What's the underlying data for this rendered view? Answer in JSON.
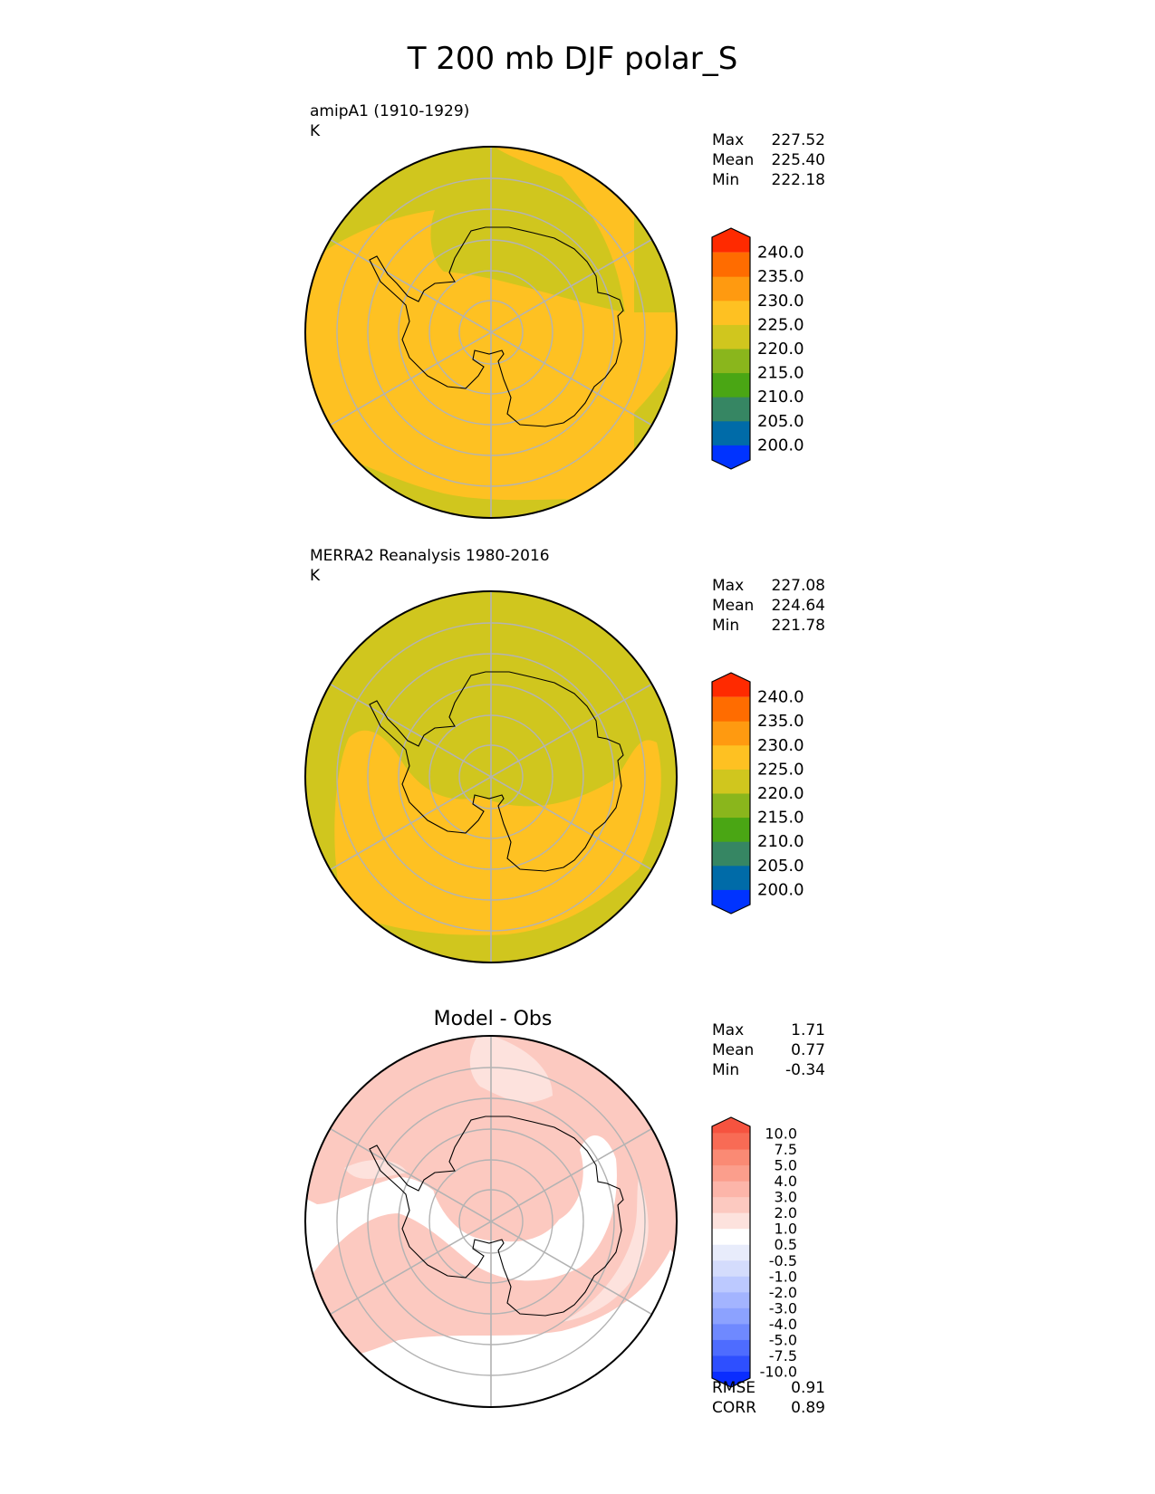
{
  "title": "T 200 mb DJF polar_S",
  "colors": {
    "temp_levels": [
      "#0033ff",
      "#006ba8",
      "#368663",
      "#4aa614",
      "#8ab61c",
      "#d0c61e",
      "#fec122",
      "#ff9a10",
      "#ff6c00",
      "#ff2a00"
    ],
    "diff_levels": [
      "#0a2dff",
      "#2e4fff",
      "#4e6cff",
      "#6f89ff",
      "#8ca2ff",
      "#a3b4ff",
      "#bcc9ff",
      "#d4dcfc",
      "#e8ecfb",
      "#ffffff",
      "#fde2dd",
      "#fcc9c0",
      "#fcb5a9",
      "#fb9e8c",
      "#fa8a74",
      "#f86b55",
      "#f6533f",
      "#f22d16"
    ],
    "grid": "#b3b3b3",
    "coast": "#000000"
  },
  "chart_data": [
    {
      "type": "heatmap",
      "projection": "south-polar-stereographic",
      "title_left": "amipA1 (1910-1929)",
      "units": "K",
      "stats": [
        {
          "label": "Max",
          "value": "227.52"
        },
        {
          "label": "Mean",
          "value": "225.40"
        },
        {
          "label": "Min",
          "value": "222.18"
        }
      ],
      "colorbar": {
        "boundaries": [
          195,
          200,
          205,
          210,
          215,
          220,
          225,
          230,
          235,
          240,
          245
        ],
        "tick_labels": [
          "200.0",
          "205.0",
          "210.0",
          "215.0",
          "220.0",
          "225.0",
          "230.0",
          "235.0",
          "240.0"
        ],
        "extend": "both"
      },
      "field": {
        "background_level": 5,
        "region_levels": [
          6,
          6,
          6
        ]
      }
    },
    {
      "type": "heatmap",
      "projection": "south-polar-stereographic",
      "title_left": "MERRA2 Reanalysis 1980-2016",
      "units": "K",
      "stats": [
        {
          "label": "Max",
          "value": "227.08"
        },
        {
          "label": "Mean",
          "value": "224.64"
        },
        {
          "label": "Min",
          "value": "221.78"
        }
      ],
      "colorbar": {
        "boundaries": [
          195,
          200,
          205,
          210,
          215,
          220,
          225,
          230,
          235,
          240,
          245
        ],
        "tick_labels": [
          "200.0",
          "205.0",
          "210.0",
          "215.0",
          "220.0",
          "225.0",
          "230.0",
          "235.0",
          "240.0"
        ],
        "extend": "both"
      },
      "field": {
        "background_level": 5,
        "region_levels": [
          6
        ]
      }
    },
    {
      "type": "heatmap",
      "projection": "south-polar-stereographic",
      "title_center": "Model - Obs",
      "stats": [
        {
          "label": "Max",
          "value": "1.71"
        },
        {
          "label": "Mean",
          "value": "0.77"
        },
        {
          "label": "Min",
          "value": "-0.34"
        }
      ],
      "colorbar": {
        "boundaries": [
          -12.5,
          -10,
          -7.5,
          -5,
          -4,
          -3,
          -2,
          -1,
          -0.5,
          0.5,
          1,
          2,
          3,
          4,
          5,
          7.5,
          10,
          12.5
        ],
        "tick_labels": [
          "-10.0",
          "-7.5",
          "-5.0",
          "-4.0",
          "-3.0",
          "-2.0",
          "-1.0",
          "-0.5",
          "0.5",
          "1.0",
          "2.0",
          "3.0",
          "4.0",
          "5.0",
          "7.5",
          "10.0"
        ],
        "extend": "both"
      },
      "field": {
        "background_level": 11,
        "region_levels": [
          9,
          10,
          11
        ]
      },
      "metrics": [
        {
          "label": "RMSE",
          "value": "0.91"
        },
        {
          "label": "CORR",
          "value": "0.89"
        }
      ]
    }
  ]
}
